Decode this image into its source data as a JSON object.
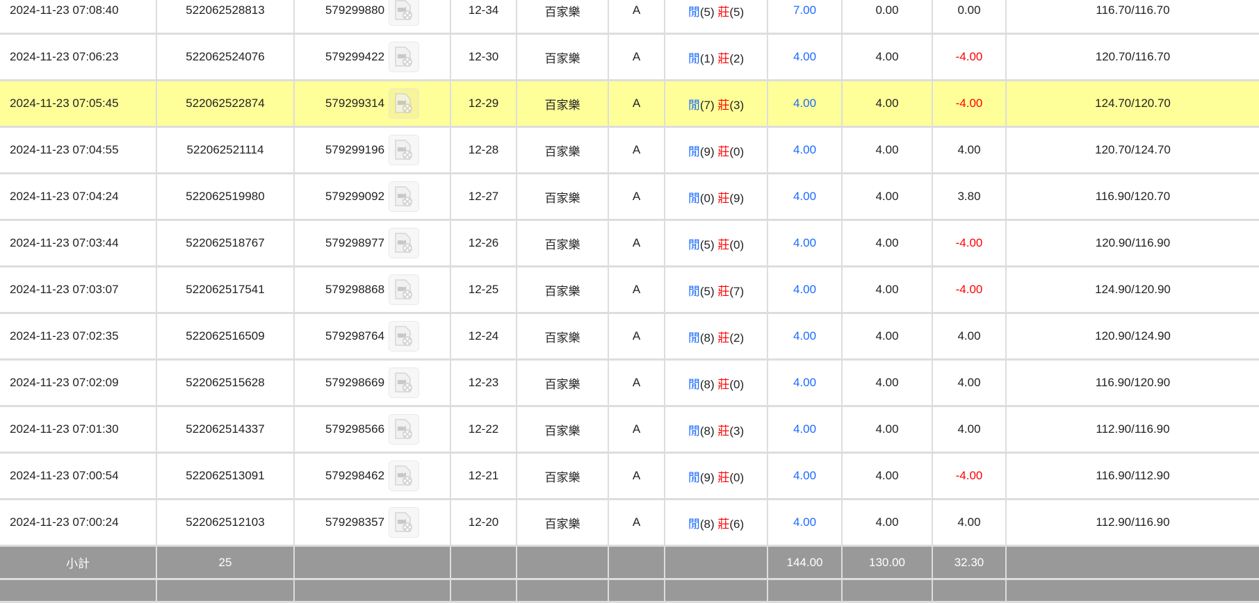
{
  "rows": [
    {
      "time": "2024-11-23 07:08:40",
      "bet_id": "522062528813",
      "round_id": "579299880",
      "shoe": "12-34",
      "game": "百家樂",
      "table": "A",
      "player_label": "閒",
      "player": "(5)",
      "banker_label": "莊",
      "banker": "(5)",
      "bet": "7.00",
      "valid": "0.00",
      "win": "0.00",
      "balance": "116.70/116.70",
      "highlight": false
    },
    {
      "time": "2024-11-23 07:06:23",
      "bet_id": "522062524076",
      "round_id": "579299422",
      "shoe": "12-30",
      "game": "百家樂",
      "table": "A",
      "player_label": "閒",
      "player": "(1)",
      "banker_label": "莊",
      "banker": "(2)",
      "bet": "4.00",
      "valid": "4.00",
      "win": "-4.00",
      "balance": "120.70/116.70",
      "highlight": false
    },
    {
      "time": "2024-11-23 07:05:45",
      "bet_id": "522062522874",
      "round_id": "579299314",
      "shoe": "12-29",
      "game": "百家樂",
      "table": "A",
      "player_label": "閒",
      "player": "(7)",
      "banker_label": "莊",
      "banker": "(3)",
      "bet": "4.00",
      "valid": "4.00",
      "win": "-4.00",
      "balance": "124.70/120.70",
      "highlight": true
    },
    {
      "time": "2024-11-23 07:04:55",
      "bet_id": "522062521114",
      "round_id": "579299196",
      "shoe": "12-28",
      "game": "百家樂",
      "table": "A",
      "player_label": "閒",
      "player": "(9)",
      "banker_label": "莊",
      "banker": "(0)",
      "bet": "4.00",
      "valid": "4.00",
      "win": "4.00",
      "balance": "120.70/124.70",
      "highlight": false
    },
    {
      "time": "2024-11-23 07:04:24",
      "bet_id": "522062519980",
      "round_id": "579299092",
      "shoe": "12-27",
      "game": "百家樂",
      "table": "A",
      "player_label": "閒",
      "player": "(0)",
      "banker_label": "莊",
      "banker": "(9)",
      "bet": "4.00",
      "valid": "4.00",
      "win": "3.80",
      "balance": "116.90/120.70",
      "highlight": false
    },
    {
      "time": "2024-11-23 07:03:44",
      "bet_id": "522062518767",
      "round_id": "579298977",
      "shoe": "12-26",
      "game": "百家樂",
      "table": "A",
      "player_label": "閒",
      "player": "(5)",
      "banker_label": "莊",
      "banker": "(0)",
      "bet": "4.00",
      "valid": "4.00",
      "win": "-4.00",
      "balance": "120.90/116.90",
      "highlight": false
    },
    {
      "time": "2024-11-23 07:03:07",
      "bet_id": "522062517541",
      "round_id": "579298868",
      "shoe": "12-25",
      "game": "百家樂",
      "table": "A",
      "player_label": "閒",
      "player": "(5)",
      "banker_label": "莊",
      "banker": "(7)",
      "bet": "4.00",
      "valid": "4.00",
      "win": "-4.00",
      "balance": "124.90/120.90",
      "highlight": false
    },
    {
      "time": "2024-11-23 07:02:35",
      "bet_id": "522062516509",
      "round_id": "579298764",
      "shoe": "12-24",
      "game": "百家樂",
      "table": "A",
      "player_label": "閒",
      "player": "(8)",
      "banker_label": "莊",
      "banker": "(2)",
      "bet": "4.00",
      "valid": "4.00",
      "win": "4.00",
      "balance": "120.90/124.90",
      "highlight": false
    },
    {
      "time": "2024-11-23 07:02:09",
      "bet_id": "522062515628",
      "round_id": "579298669",
      "shoe": "12-23",
      "game": "百家樂",
      "table": "A",
      "player_label": "閒",
      "player": "(8)",
      "banker_label": "莊",
      "banker": "(0)",
      "bet": "4.00",
      "valid": "4.00",
      "win": "4.00",
      "balance": "116.90/120.90",
      "highlight": false
    },
    {
      "time": "2024-11-23 07:01:30",
      "bet_id": "522062514337",
      "round_id": "579298566",
      "shoe": "12-22",
      "game": "百家樂",
      "table": "A",
      "player_label": "閒",
      "player": "(8)",
      "banker_label": "莊",
      "banker": "(3)",
      "bet": "4.00",
      "valid": "4.00",
      "win": "4.00",
      "balance": "112.90/116.90",
      "highlight": false
    },
    {
      "time": "2024-11-23 07:00:54",
      "bet_id": "522062513091",
      "round_id": "579298462",
      "shoe": "12-21",
      "game": "百家樂",
      "table": "A",
      "player_label": "閒",
      "player": "(9)",
      "banker_label": "莊",
      "banker": "(0)",
      "bet": "4.00",
      "valid": "4.00",
      "win": "-4.00",
      "balance": "116.90/112.90",
      "highlight": false
    },
    {
      "time": "2024-11-23 07:00:24",
      "bet_id": "522062512103",
      "round_id": "579298357",
      "shoe": "12-20",
      "game": "百家樂",
      "table": "A",
      "player_label": "閒",
      "player": "(8)",
      "banker_label": "莊",
      "banker": "(6)",
      "bet": "4.00",
      "valid": "4.00",
      "win": "4.00",
      "balance": "112.90/116.90",
      "highlight": false
    }
  ],
  "subtotal": {
    "label": "小計",
    "count": "25",
    "bet": "144.00",
    "valid": "130.00",
    "win": "32.30"
  },
  "colors": {
    "highlight": "#ffff99",
    "positive": "#1a6bff",
    "negative": "#ff0000",
    "subtotal_bg": "#999999"
  },
  "icons": {
    "replay": "video-file-icon"
  }
}
